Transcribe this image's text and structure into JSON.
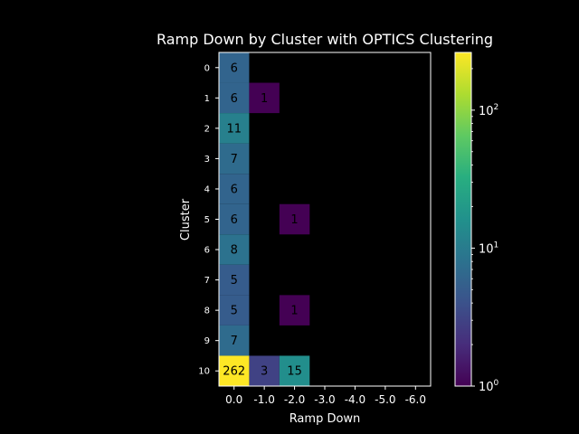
{
  "chart_data": {
    "type": "heatmap",
    "title": "Ramp Down by Cluster with OPTICS Clustering",
    "xlabel": "Ramp Down",
    "ylabel": "Cluster",
    "x_categories": [
      "0.0",
      "-1.0",
      "-2.0",
      "-3.0",
      "-4.0",
      "-5.0",
      "-6.0"
    ],
    "y_categories": [
      "0",
      "1",
      "2",
      "3",
      "4",
      "5",
      "6",
      "7",
      "8",
      "9",
      "10"
    ],
    "cells": [
      {
        "row": "0",
        "col": "0.0",
        "value": 6
      },
      {
        "row": "1",
        "col": "0.0",
        "value": 6
      },
      {
        "row": "1",
        "col": "-1.0",
        "value": 1
      },
      {
        "row": "2",
        "col": "0.0",
        "value": 11
      },
      {
        "row": "3",
        "col": "0.0",
        "value": 7
      },
      {
        "row": "4",
        "col": "0.0",
        "value": 6
      },
      {
        "row": "5",
        "col": "0.0",
        "value": 6
      },
      {
        "row": "5",
        "col": "-2.0",
        "value": 1
      },
      {
        "row": "6",
        "col": "0.0",
        "value": 8
      },
      {
        "row": "7",
        "col": "0.0",
        "value": 5
      },
      {
        "row": "8",
        "col": "0.0",
        "value": 5
      },
      {
        "row": "8",
        "col": "-2.0",
        "value": 1
      },
      {
        "row": "9",
        "col": "0.0",
        "value": 7
      },
      {
        "row": "10",
        "col": "0.0",
        "value": 262
      },
      {
        "row": "10",
        "col": "-1.0",
        "value": 3
      },
      {
        "row": "10",
        "col": "-2.0",
        "value": 15
      }
    ],
    "colorbar": {
      "scale": "log",
      "colormap": "viridis",
      "range": [
        1,
        262
      ],
      "ticks": [
        {
          "value": 1,
          "base": "10",
          "exp": "0"
        },
        {
          "value": 10,
          "base": "10",
          "exp": "1"
        },
        {
          "value": 100,
          "base": "10",
          "exp": "2"
        }
      ]
    },
    "background_color": "#000000",
    "foreground_color": "#ffffff",
    "grid": false,
    "legend": "none"
  }
}
